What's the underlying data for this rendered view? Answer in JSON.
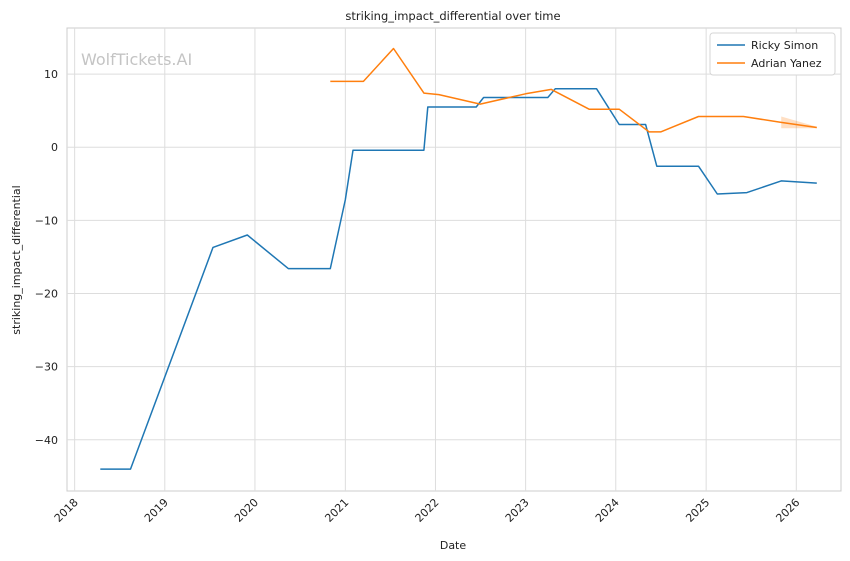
{
  "chart_data": {
    "type": "line",
    "title": "striking_impact_differential over time",
    "xlabel": "Date",
    "ylabel": "striking_impact_differential",
    "watermark": "WolfTickets.AI",
    "x_range": [
      "2017-12-01",
      "2026-07-01"
    ],
    "y_range": [
      -47,
      16.3
    ],
    "x_ticks": [
      "2018",
      "2019",
      "2020",
      "2021",
      "2022",
      "2023",
      "2024",
      "2025",
      "2026"
    ],
    "y_ticks": [
      10,
      0,
      -10,
      -20,
      -30,
      -40
    ],
    "y_tick_labels": [
      "10",
      "0",
      "−10",
      "−20",
      "−30",
      "−40"
    ],
    "grid": true,
    "legend_position": "top-right",
    "series": [
      {
        "name": "Ricky Simon",
        "color": "#1f77b4",
        "points": [
          [
            "2018-04-15",
            -44.0
          ],
          [
            "2018-08-15",
            -44.0
          ],
          [
            "2019-07-15",
            -13.7
          ],
          [
            "2019-12-01",
            -12.0
          ],
          [
            "2020-05-15",
            -16.6
          ],
          [
            "2020-11-01",
            -16.6
          ],
          [
            "2021-01-01",
            -7.2
          ],
          [
            "2021-02-01",
            -0.4
          ],
          [
            "2021-11-15",
            -0.4
          ],
          [
            "2021-12-01",
            5.5
          ],
          [
            "2022-06-15",
            5.5
          ],
          [
            "2022-07-15",
            6.8
          ],
          [
            "2023-04-01",
            6.8
          ],
          [
            "2023-05-01",
            8.0
          ],
          [
            "2023-10-15",
            8.0
          ],
          [
            "2024-01-15",
            3.1
          ],
          [
            "2024-05-01",
            3.1
          ],
          [
            "2024-06-15",
            -2.6
          ],
          [
            "2024-12-01",
            -2.6
          ],
          [
            "2025-02-15",
            -6.4
          ],
          [
            "2025-06-15",
            -6.2
          ],
          [
            "2025-11-01",
            -4.6
          ],
          [
            "2026-03-25",
            -4.9
          ]
        ]
      },
      {
        "name": "Adrian Yanez",
        "color": "#ff7f0e",
        "points": [
          [
            "2020-11-01",
            9.0
          ],
          [
            "2021-03-15",
            9.0
          ],
          [
            "2021-07-15",
            13.5
          ],
          [
            "2021-11-15",
            7.4
          ],
          [
            "2022-01-15",
            7.2
          ],
          [
            "2022-07-01",
            5.9
          ],
          [
            "2023-01-01",
            7.3
          ],
          [
            "2023-04-15",
            7.9
          ],
          [
            "2023-09-15",
            5.2
          ],
          [
            "2024-01-15",
            5.2
          ],
          [
            "2024-05-15",
            2.1
          ],
          [
            "2024-07-01",
            2.1
          ],
          [
            "2024-12-01",
            4.2
          ],
          [
            "2025-06-01",
            4.2
          ],
          [
            "2025-11-01",
            3.4
          ],
          [
            "2026-03-25",
            2.7
          ]
        ]
      }
    ]
  }
}
